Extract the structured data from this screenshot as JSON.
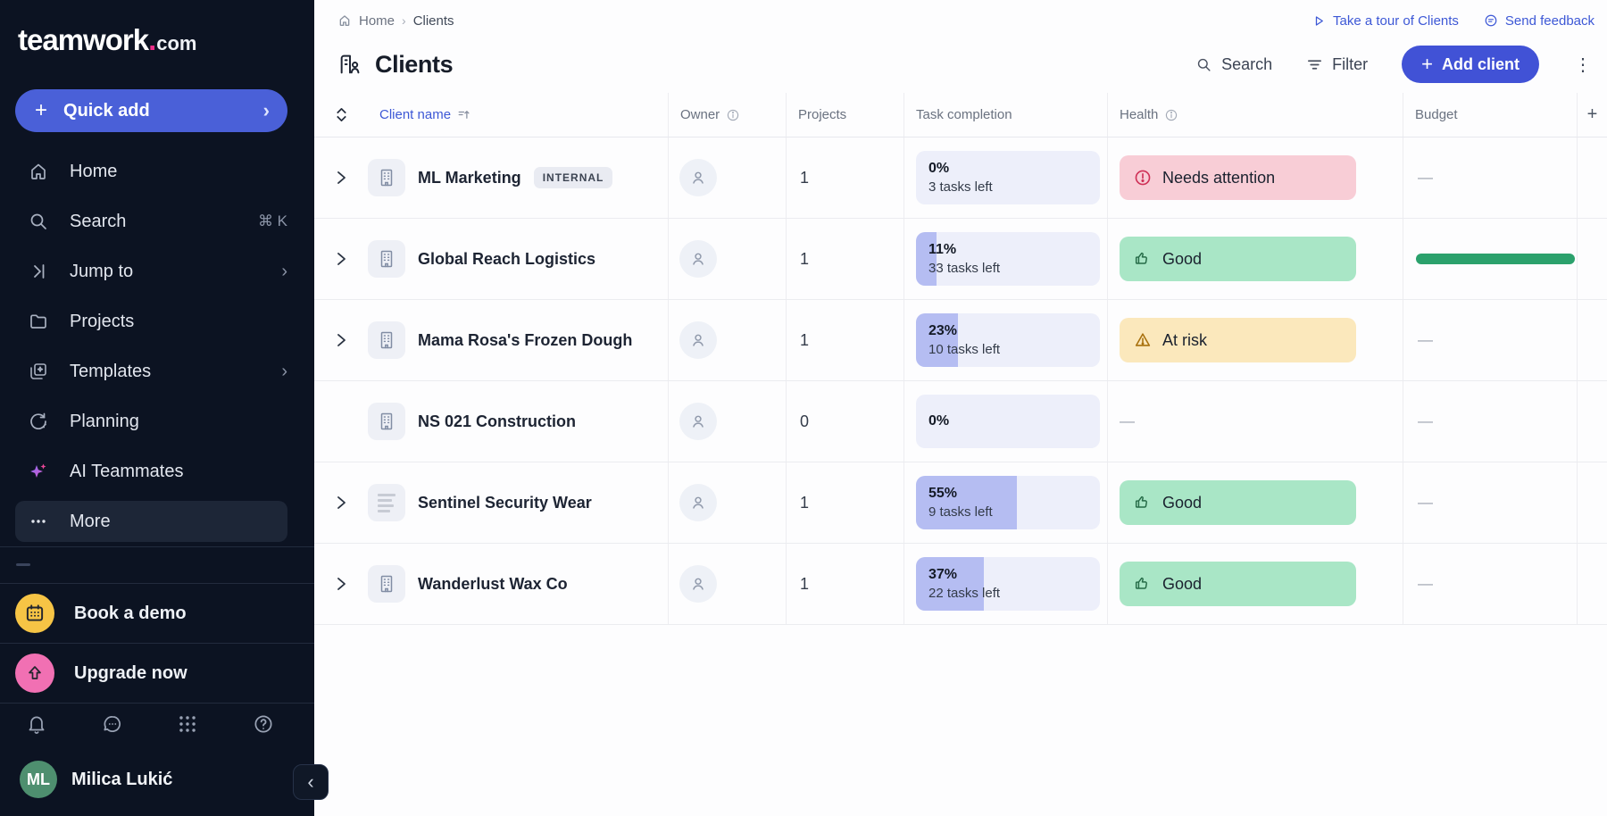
{
  "brand": {
    "word": "teamwork",
    "dot": ".",
    "tld": "com"
  },
  "sidebar": {
    "quick_add": {
      "label": "Quick add"
    },
    "items": [
      {
        "label": "Home"
      },
      {
        "label": "Search",
        "shortcut": "⌘ K"
      },
      {
        "label": "Jump to"
      },
      {
        "label": "Projects"
      },
      {
        "label": "Templates"
      },
      {
        "label": "Planning"
      },
      {
        "label": "AI Teammates"
      },
      {
        "label": "More"
      }
    ],
    "book_demo": {
      "label": "Book a demo"
    },
    "upgrade": {
      "label": "Upgrade now"
    },
    "user": {
      "initials": "ML",
      "name": "Milica Lukić"
    }
  },
  "topbar": {
    "breadcrumb": {
      "home": "Home",
      "current": "Clients"
    },
    "tour": "Take a tour of Clients",
    "feedback": "Send feedback"
  },
  "header": {
    "title": "Clients",
    "search": "Search",
    "filter": "Filter",
    "add_client": "Add client",
    "add_plus": "+"
  },
  "table": {
    "dash": "—",
    "columns": {
      "client": "Client name",
      "owner": "Owner",
      "projects": "Projects",
      "task": "Task completion",
      "health": "Health",
      "budget": "Budget",
      "add": "+"
    },
    "rows": [
      {
        "name": "ML Marketing",
        "badge": "INTERNAL",
        "expandable": true,
        "icon": "building",
        "projects": "1",
        "pct": "0%",
        "pct_value": 0,
        "tasks_left": "3 tasks left",
        "health": "danger",
        "health_label": "Needs attention",
        "budget": "dash"
      },
      {
        "name": "Global Reach Logistics",
        "badge": null,
        "expandable": true,
        "icon": "building",
        "projects": "1",
        "pct": "11%",
        "pct_value": 11,
        "tasks_left": "33 tasks left",
        "health": "good",
        "health_label": "Good",
        "budget": "bar"
      },
      {
        "name": "Mama Rosa's Frozen Dough",
        "badge": null,
        "expandable": true,
        "icon": "building",
        "projects": "1",
        "pct": "23%",
        "pct_value": 23,
        "tasks_left": "10 tasks left",
        "health": "warning",
        "health_label": "At risk",
        "budget": "dash"
      },
      {
        "name": "NS 021 Construction",
        "badge": null,
        "expandable": false,
        "icon": "building",
        "projects": "0",
        "pct": "0%",
        "pct_value": 0,
        "tasks_left": null,
        "health": "none",
        "health_label": null,
        "budget": "dash"
      },
      {
        "name": "Sentinel Security Wear",
        "badge": null,
        "expandable": true,
        "icon": "logo-lines",
        "projects": "1",
        "pct": "55%",
        "pct_value": 55,
        "tasks_left": "9 tasks left",
        "health": "good",
        "health_label": "Good",
        "budget": "dash"
      },
      {
        "name": "Wanderlust Wax Co",
        "badge": null,
        "expandable": true,
        "icon": "building",
        "projects": "1",
        "pct": "37%",
        "pct_value": 37,
        "tasks_left": "22 tasks left",
        "health": "good",
        "health_label": "Good",
        "budget": "dash"
      }
    ]
  },
  "colors": {
    "sidebar_bg": "#0c1322",
    "accent_blue": "#4a60d8",
    "add_client_blue": "#4152d6",
    "link_blue": "#3d58d6",
    "brand_pink_dot": "#ec2d88",
    "health_danger_bg": "#f8cdd6",
    "health_good_bg": "#a9e6c6",
    "health_warning_bg": "#fbe8bc",
    "task_box_bg": "#edeffa",
    "task_fill": "#b5bdf2",
    "budget_bar_green": "#2ba16c",
    "book_demo_yellow": "#f6c445",
    "upgrade_pink": "#f170b3",
    "avatar_green": "#4e8f6f"
  }
}
